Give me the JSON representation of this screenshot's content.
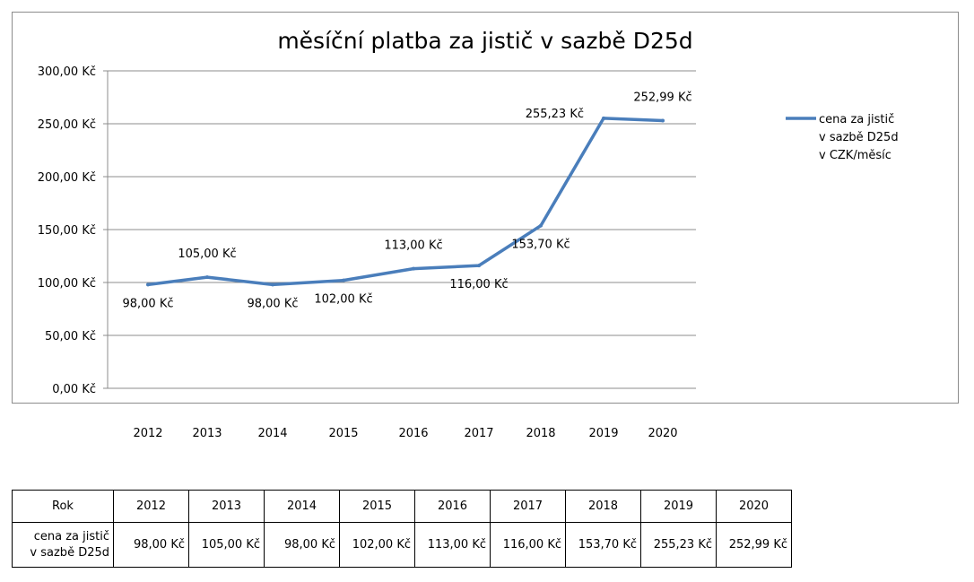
{
  "chart_data": {
    "type": "line",
    "title": "měsíční platba za jistič v sazbě D25d",
    "categories": [
      "2012",
      "2013",
      "2014",
      "2015",
      "2016",
      "2017",
      "2018",
      "2019",
      "2020"
    ],
    "series": [
      {
        "name": [
          "cena za jistič",
          "v sazbě D25d",
          "v CZK/měsíc"
        ],
        "values": [
          98.0,
          105.0,
          98.0,
          102.0,
          113.0,
          116.0,
          153.7,
          255.23,
          252.99
        ],
        "labels": [
          "98,00 Kč",
          "105,00 Kč",
          "98,00 Kč",
          "102,00 Kč",
          "113,00 Kč",
          "116,00 Kč",
          "153,70 Kč",
          "255,23 Kč",
          "252,99 Kč"
        ],
        "color": "#4a7ebb"
      }
    ],
    "ylim": [
      0,
      300
    ],
    "yticks": [
      "0,00 Kč",
      "50,00 Kč",
      "100,00 Kč",
      "150,00 Kč",
      "200,00 Kč",
      "250,00 Kč",
      "300,00 Kč"
    ],
    "grid": true,
    "legend": "right"
  },
  "table": {
    "header_label": "Rok",
    "row_label": [
      "cena za jistič",
      "v sazbě D25d"
    ],
    "years": [
      "2012",
      "2013",
      "2014",
      "2015",
      "2016",
      "2017",
      "2018",
      "2019",
      "2020"
    ],
    "values": [
      "98,00 Kč",
      "105,00 Kč",
      "98,00 Kč",
      "102,00 Kč",
      "113,00 Kč",
      "116,00 Kč",
      "153,70 Kč",
      "255,23 Kč",
      "252,99 Kč"
    ]
  }
}
